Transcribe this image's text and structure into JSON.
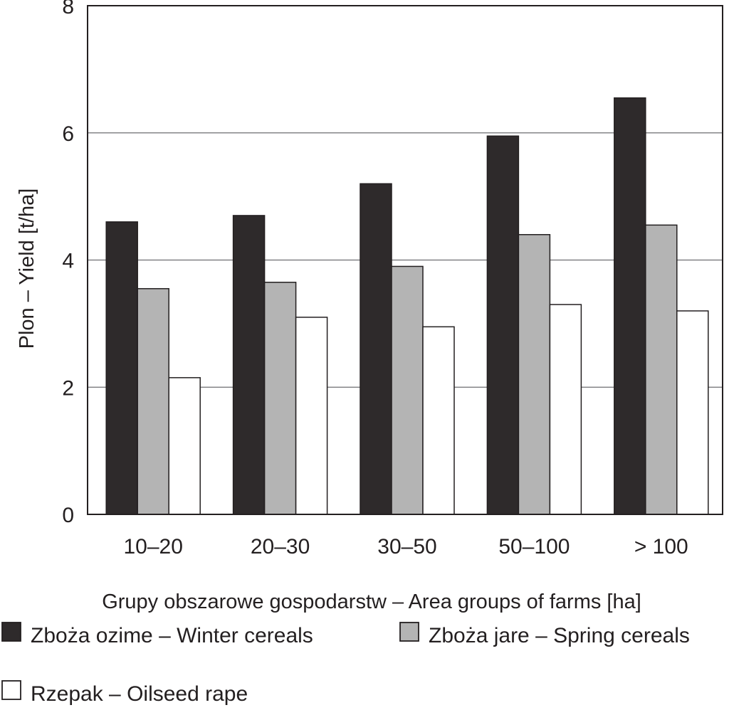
{
  "chart_data": {
    "type": "bar",
    "title": "",
    "xlabel": "Grupy obszarowe gospodarstw – Area groups of farms [ha]",
    "ylabel": "Plon – Yield [t/ha]",
    "ylim": [
      0,
      8
    ],
    "yticks": [
      "0",
      "2",
      "4",
      "6",
      "8"
    ],
    "ytick_values": [
      0,
      2,
      4,
      6,
      8
    ],
    "grid": true,
    "legend_position": "bottom",
    "categories": [
      "10–20",
      "20–30",
      "30–50",
      "50–100",
      "> 100"
    ],
    "series": [
      {
        "name": "Zboża ozime – Winter cereals",
        "color": "#2e2a2b",
        "values": [
          4.6,
          4.7,
          5.2,
          5.95,
          6.55
        ]
      },
      {
        "name": "Zboża jare – Spring cereals",
        "color": "#b4b4b4",
        "values": [
          3.55,
          3.65,
          3.9,
          4.4,
          4.55
        ]
      },
      {
        "name": "Rzepak – Oilseed rape",
        "color": "#ffffff",
        "values": [
          2.15,
          3.1,
          2.95,
          3.3,
          3.2
        ]
      }
    ]
  }
}
